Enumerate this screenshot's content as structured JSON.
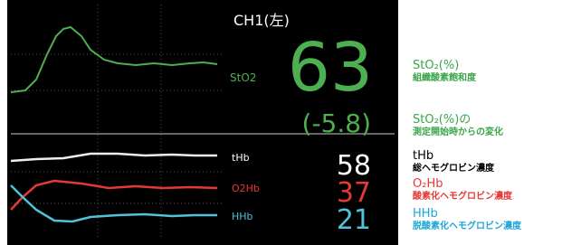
{
  "monitor": {
    "channel": "CH1(左)",
    "traces": [
      {
        "label": "StO2"
      },
      {
        "label": "tHb"
      },
      {
        "label": "O2Hb"
      },
      {
        "label": "HHb"
      }
    ],
    "readouts": {
      "sto2": "63",
      "change": "(-5.8)",
      "thb": "58",
      "o2hb": "37",
      "hhb": "21"
    }
  },
  "legend": [
    {
      "title": "StO₂(%)",
      "subtitle": "組織酸素飽和度"
    },
    {
      "title": "StO₂(%)の",
      "subtitle": "測定開始時からの変化"
    },
    {
      "title": "tHb",
      "subtitle": "総ヘモグロビン濃度"
    },
    {
      "title": "O₂Hb",
      "subtitle": "酸素化ヘモグロビン濃度"
    },
    {
      "title": "HHb",
      "subtitle": "脱酸素化ヘモグロビン濃度"
    }
  ]
}
